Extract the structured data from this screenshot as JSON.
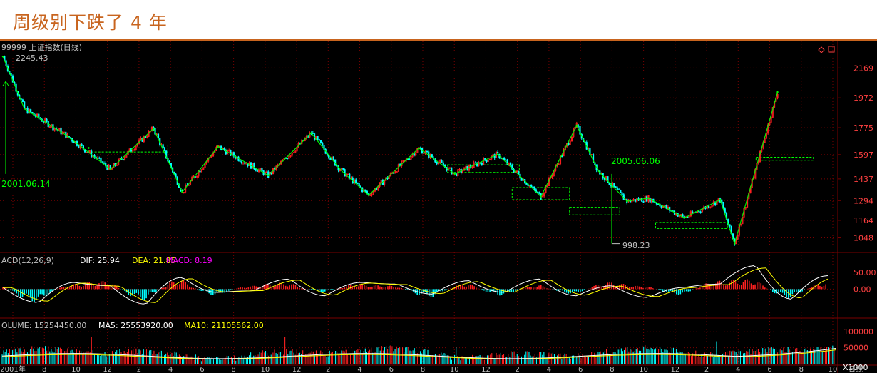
{
  "title": "周级别下跌了 4 年",
  "chart_data": [
    {
      "type": "line",
      "panel": "price",
      "header": "99999 上证指数(日线)",
      "ylim": [
        980,
        2260
      ],
      "y_ticks": [
        2169,
        1972,
        1775,
        1597,
        1437,
        1294,
        1164,
        1048
      ],
      "x_ticks": [
        "2001年",
        "8",
        "10",
        "12",
        "2",
        "4",
        "6",
        "8",
        "10",
        "12",
        "2",
        "4",
        "6",
        "8",
        "10",
        "12",
        "2",
        "4",
        "6",
        "8",
        "10",
        "12",
        "2",
        "4",
        "6",
        "8",
        "10"
      ],
      "x_axis_end_label": "日线",
      "annotations": {
        "high_label": "2245.43",
        "low_label": "998.23",
        "start_date": "2001.06.14",
        "bottom_date": "2005.06.06"
      },
      "series": [
        {
          "color": "#00ff00",
          "x": [
            0,
            3,
            9,
            15,
            21,
            25,
            30,
            37,
            43,
            47,
            51,
            58,
            63,
            69,
            75,
            80,
            83,
            87,
            90,
            95,
            100,
            102,
            108
          ],
          "values": [
            2245,
            1900,
            1720,
            1500,
            1770,
            1350,
            1650,
            1460,
            1740,
            1500,
            1330,
            1640,
            1470,
            1600,
            1320,
            1790,
            1490,
            1290,
            1310,
            1180,
            1300,
            1010,
            2010
          ]
        }
      ],
      "zones": [
        {
          "x0": 12,
          "x1": 23,
          "low": 1615,
          "high": 1660
        },
        {
          "x0": 62,
          "x1": 72,
          "low": 1480,
          "high": 1530
        },
        {
          "x0": 71,
          "x1": 79,
          "low": 1300,
          "high": 1380
        },
        {
          "x0": 79,
          "x1": 86,
          "low": 1200,
          "high": 1250
        },
        {
          "x0": 91,
          "x1": 101,
          "low": 1110,
          "high": 1150
        },
        {
          "x0": 105,
          "x1": 113,
          "low": 1560,
          "high": 1580
        }
      ]
    },
    {
      "type": "bar",
      "panel": "macd",
      "header_prefix": "ACD(12,26,9)",
      "dif_label": "DIF: 25.94",
      "dea_label": "DEA: 21.85",
      "macd_label": "MACD: 8.19",
      "y_ticks": [
        "50.00",
        "0.00"
      ],
      "ylim": [
        -80,
        90
      ],
      "x": [
        0,
        5,
        10,
        15,
        20,
        25,
        30,
        35,
        40,
        45,
        50,
        55,
        60,
        65,
        70,
        75,
        80,
        85,
        90,
        95,
        100,
        105,
        110,
        115
      ],
      "histogram": [
        10,
        -40,
        15,
        25,
        -35,
        30,
        -20,
        10,
        20,
        -10,
        15,
        10,
        -25,
        18,
        -20,
        12,
        -15,
        22,
        8,
        -18,
        25,
        30,
        -28,
        20
      ],
      "dif": [
        5,
        -40,
        20,
        10,
        -45,
        35,
        -10,
        -5,
        30,
        -20,
        20,
        15,
        -15,
        25,
        -10,
        30,
        -20,
        10,
        -25,
        5,
        15,
        70,
        -30,
        40
      ]
    },
    {
      "type": "bar",
      "panel": "volume",
      "volume_label": "OLUME: 15254450.00",
      "ma5_label": "MA5: 25553920.00",
      "ma10_label": "MA10: 21105562.00",
      "y_ticks": [
        "100000",
        "50000"
      ],
      "unit": "X1000",
      "ylim": [
        0,
        125000
      ]
    }
  ],
  "colors": {
    "up": "#ff2020",
    "down": "#00ffff",
    "zigzag": "#00ff00",
    "grid": "#7a0000",
    "axis_text": "#ff4040",
    "dif": "#ffffff",
    "dea": "#ffff00",
    "macd_text": "#ff00ff"
  },
  "window_icons": [
    "diamond-icon",
    "restore-icon"
  ]
}
